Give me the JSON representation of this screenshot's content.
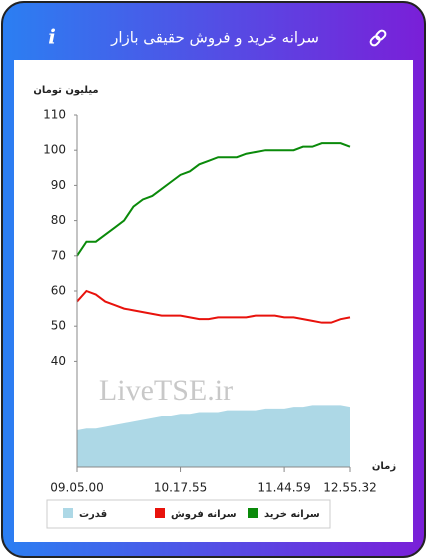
{
  "header": {
    "title": "سرانه خرید و فروش حقیقی بازار",
    "info_icon": "i"
  },
  "chart_data": {
    "type": "line",
    "y_label": "میلیون تومان",
    "x_label": "زمان",
    "watermark": "LiveTSE.ir",
    "categories": [
      "09.05.00",
      null,
      null,
      null,
      null,
      null,
      null,
      null,
      null,
      null,
      null,
      "10.17.55",
      null,
      null,
      null,
      null,
      null,
      null,
      null,
      null,
      null,
      null,
      "11.44.59",
      null,
      null,
      null,
      null,
      null,
      null,
      "12.55.32"
    ],
    "ylim": [
      10,
      110
    ],
    "yticks": [
      40,
      50,
      60,
      70,
      80,
      90,
      100,
      110
    ],
    "grid": false,
    "series": [
      {
        "name": "قدرت",
        "color": "#add8e6",
        "kind": "area",
        "values": [
          20.5,
          21,
          21,
          21.5,
          22,
          22.5,
          23,
          23.5,
          24,
          24.5,
          24.5,
          25,
          25,
          25.5,
          25.5,
          25.5,
          26,
          26,
          26,
          26,
          26.5,
          26.5,
          26.5,
          27,
          27,
          27.5,
          27.5,
          27.5,
          27.5,
          27
        ]
      },
      {
        "name": "سرانه فروش",
        "color": "#e8120c",
        "kind": "line",
        "values": [
          57,
          60,
          59,
          57,
          56,
          55,
          54.5,
          54,
          53.5,
          53,
          53,
          53,
          52.5,
          52,
          52,
          52.5,
          52.5,
          52.5,
          52.5,
          53,
          53,
          53,
          52.5,
          52.5,
          52,
          51.5,
          51,
          51,
          52,
          52.5
        ]
      },
      {
        "name": "سرانه خرید",
        "color": "#0a8a0a",
        "kind": "line",
        "values": [
          70,
          74,
          74,
          76,
          78,
          80,
          84,
          86,
          87,
          89,
          91,
          93,
          94,
          96,
          97,
          98,
          98,
          98,
          99,
          99.5,
          100,
          100,
          100,
          100,
          101,
          101,
          102,
          102,
          102,
          101
        ]
      }
    ]
  }
}
